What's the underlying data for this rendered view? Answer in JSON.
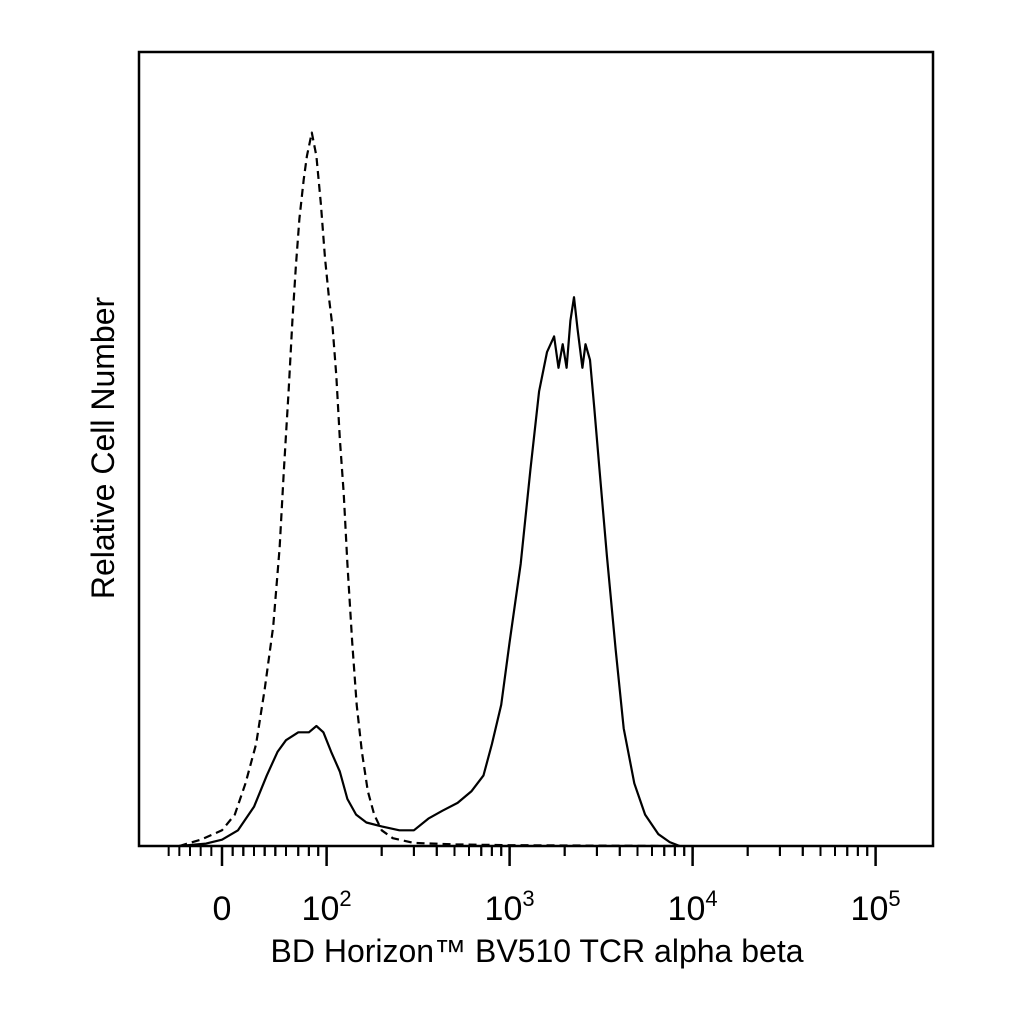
{
  "chart_data": {
    "type": "line",
    "title": "",
    "xlabel": "BD Horizon™ BV510  TCR alpha beta",
    "ylabel": "Relative Cell Number",
    "x_scale": "biexponential",
    "xlim": [
      -60,
      250000
    ],
    "ylim": [
      0,
      100
    ],
    "grid": false,
    "legend": "none",
    "x_ticks": [
      {
        "value": 0,
        "base": "0",
        "exp": ""
      },
      {
        "value": 100,
        "base": "10",
        "exp": "2"
      },
      {
        "value": 1000,
        "base": "10",
        "exp": "3"
      },
      {
        "value": 10000,
        "base": "10",
        "exp": "4"
      },
      {
        "value": 100000,
        "base": "10",
        "exp": "5"
      }
    ],
    "series": [
      {
        "style": "dashed",
        "color": "#000000",
        "points": [
          [
            -40,
            0
          ],
          [
            -20,
            0.8
          ],
          [
            0,
            2
          ],
          [
            12,
            4
          ],
          [
            22,
            8
          ],
          [
            32,
            13
          ],
          [
            40,
            20
          ],
          [
            48,
            28
          ],
          [
            54,
            38
          ],
          [
            58,
            48
          ],
          [
            62,
            58
          ],
          [
            65,
            67
          ],
          [
            68,
            74
          ],
          [
            71,
            80
          ],
          [
            75,
            85
          ],
          [
            78,
            88
          ],
          [
            83,
            91
          ],
          [
            88,
            88
          ],
          [
            93,
            82
          ],
          [
            98,
            75
          ],
          [
            103,
            70
          ],
          [
            108,
            66
          ],
          [
            113,
            60
          ],
          [
            118,
            52
          ],
          [
            124,
            45
          ],
          [
            130,
            36
          ],
          [
            138,
            26
          ],
          [
            146,
            18
          ],
          [
            156,
            12
          ],
          [
            168,
            7
          ],
          [
            182,
            4
          ],
          [
            200,
            2
          ],
          [
            230,
            1
          ],
          [
            300,
            0.4
          ],
          [
            500,
            0.2
          ],
          [
            1000,
            0.1
          ],
          [
            3000,
            0.05
          ],
          [
            8000,
            0
          ]
        ]
      },
      {
        "style": "solid",
        "color": "#000000",
        "points": [
          [
            -40,
            0
          ],
          [
            -15,
            0.3
          ],
          [
            0,
            0.8
          ],
          [
            15,
            2
          ],
          [
            30,
            5
          ],
          [
            42,
            9
          ],
          [
            52,
            12
          ],
          [
            60,
            13.5
          ],
          [
            70,
            14.5
          ],
          [
            80,
            14.5
          ],
          [
            88,
            15.3
          ],
          [
            96,
            14.5
          ],
          [
            106,
            12
          ],
          [
            118,
            9.5
          ],
          [
            130,
            6
          ],
          [
            145,
            4
          ],
          [
            165,
            3
          ],
          [
            200,
            2.5
          ],
          [
            250,
            2
          ],
          [
            300,
            2
          ],
          [
            360,
            3.5
          ],
          [
            430,
            4.5
          ],
          [
            520,
            5.5
          ],
          [
            620,
            7
          ],
          [
            720,
            9
          ],
          [
            800,
            13
          ],
          [
            900,
            18
          ],
          [
            1000,
            26
          ],
          [
            1150,
            36
          ],
          [
            1300,
            48
          ],
          [
            1450,
            58
          ],
          [
            1600,
            63
          ],
          [
            1750,
            65
          ],
          [
            1850,
            61
          ],
          [
            1950,
            64
          ],
          [
            2050,
            61
          ],
          [
            2150,
            67
          ],
          [
            2250,
            70
          ],
          [
            2350,
            66
          ],
          [
            2500,
            61
          ],
          [
            2600,
            64
          ],
          [
            2750,
            62
          ],
          [
            2900,
            56
          ],
          [
            3100,
            48
          ],
          [
            3400,
            37
          ],
          [
            3800,
            25
          ],
          [
            4200,
            15
          ],
          [
            4800,
            8
          ],
          [
            5500,
            4
          ],
          [
            6500,
            1.5
          ],
          [
            7500,
            0.5
          ],
          [
            8500,
            0
          ]
        ]
      }
    ]
  }
}
